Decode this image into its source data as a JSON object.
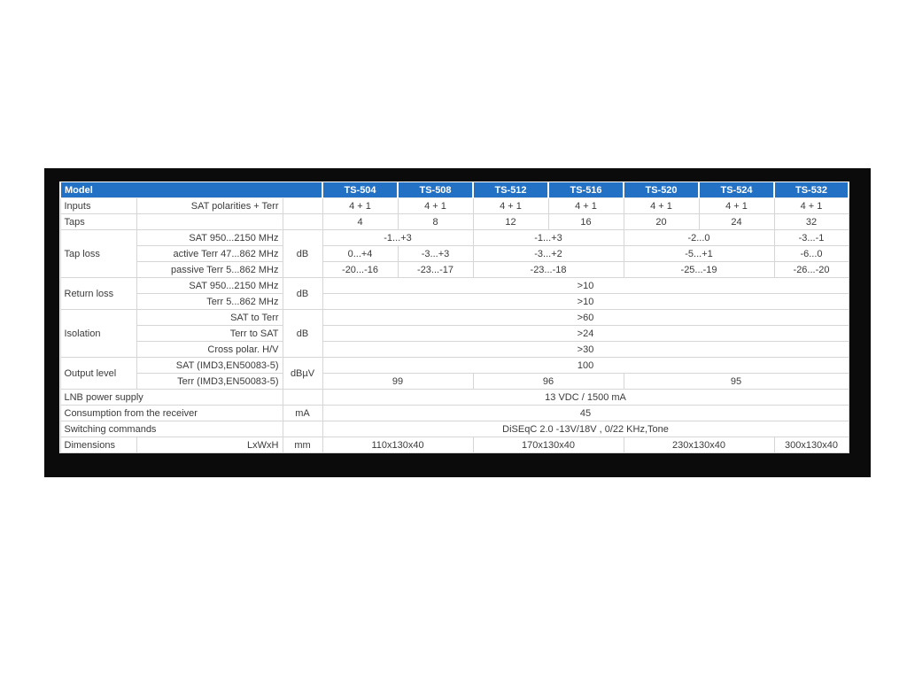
{
  "page": {
    "background": "#ffffff"
  },
  "panel": {
    "background": "#0b0b0b"
  },
  "colors": {
    "header_bg": "#2371c4",
    "header_text": "#ffffff",
    "grid": "#d6d6d6",
    "text": "#3b3b3b",
    "table_bg": "#ffffff"
  },
  "table": {
    "model_header": "Model",
    "model_columns": [
      "TS-504",
      "TS-508",
      "TS-512",
      "TS-516",
      "TS-520",
      "TS-524",
      "TS-532"
    ],
    "rows": [
      {
        "cells": [
          {
            "n": "model-header",
            "t": "Model",
            "c": 3,
            "cls": "h hl"
          },
          {
            "n": "column-header-ts-504",
            "t": "TS-504"
          },
          {
            "n": "column-header-ts-508",
            "t": "TS-508"
          },
          {
            "n": "column-header-ts-512",
            "t": "TS-512"
          },
          {
            "n": "column-header-ts-516",
            "t": "TS-516"
          },
          {
            "n": "column-header-ts-520",
            "t": "TS-520"
          },
          {
            "n": "column-header-ts-524",
            "t": "TS-524"
          },
          {
            "n": "column-header-ts-532",
            "t": "TS-532"
          }
        ]
      },
      {
        "cells": [
          {
            "n": "row-label-inputs",
            "t": "Inputs",
            "cls": "lbl"
          },
          {
            "n": "sublabel-inputs",
            "t": "SAT polarities + Terr",
            "cls": "sub"
          },
          {
            "n": "unit-inputs",
            "t": "",
            "cls": "unit"
          },
          {
            "n": "value-inputs-ts-504",
            "t": "4 + 1",
            "cls": "val"
          },
          {
            "n": "value-inputs-ts-508",
            "t": "4 + 1",
            "cls": "val"
          },
          {
            "n": "value-inputs-ts-512",
            "t": "4 + 1",
            "cls": "val"
          },
          {
            "n": "value-inputs-ts-516",
            "t": "4 + 1",
            "cls": "val"
          },
          {
            "n": "value-inputs-ts-520",
            "t": "4 + 1",
            "cls": "val"
          },
          {
            "n": "value-inputs-ts-524",
            "t": "4 + 1",
            "cls": "val"
          },
          {
            "n": "value-inputs-ts-532",
            "t": "4 + 1",
            "cls": "val"
          }
        ]
      },
      {
        "cells": [
          {
            "n": "row-label-taps",
            "t": "Taps",
            "cls": "lbl"
          },
          {
            "n": "sublabel-taps",
            "t": "",
            "cls": "sub"
          },
          {
            "n": "unit-taps",
            "t": "",
            "cls": "unit"
          },
          {
            "n": "value-taps-ts-504",
            "t": "4",
            "cls": "val"
          },
          {
            "n": "value-taps-ts-508",
            "t": "8",
            "cls": "val"
          },
          {
            "n": "value-taps-ts-512",
            "t": "12",
            "cls": "val"
          },
          {
            "n": "value-taps-ts-516",
            "t": "16",
            "cls": "val"
          },
          {
            "n": "value-taps-ts-520",
            "t": "20",
            "cls": "val"
          },
          {
            "n": "value-taps-ts-524",
            "t": "24",
            "cls": "val"
          },
          {
            "n": "value-taps-ts-532",
            "t": "32",
            "cls": "val"
          }
        ]
      },
      {
        "cells": [
          {
            "n": "row-label-tap-loss",
            "t": "Tap loss",
            "r": 3,
            "cls": "lbl"
          },
          {
            "n": "sublabel-tap-loss-sat",
            "t": "SAT 950...2150 MHz",
            "cls": "sub"
          },
          {
            "n": "unit-tap-loss",
            "t": "dB",
            "r": 3,
            "cls": "unit"
          },
          {
            "n": "value-tap-loss-sat-ts504-508",
            "t": "-1...+3",
            "c": 2,
            "cls": "val"
          },
          {
            "n": "value-tap-loss-sat-ts512-516",
            "t": "-1...+3",
            "c": 2,
            "cls": "val"
          },
          {
            "n": "value-tap-loss-sat-ts520-524",
            "t": "-2...0",
            "c": 2,
            "cls": "val"
          },
          {
            "n": "value-tap-loss-sat-ts532",
            "t": "-3...-1",
            "cls": "val"
          }
        ]
      },
      {
        "cells": [
          {
            "n": "sublabel-tap-loss-active-terr",
            "t": "active Terr 47...862 MHz",
            "cls": "sub"
          },
          {
            "n": "value-tap-loss-active-ts504",
            "t": "0...+4",
            "cls": "val"
          },
          {
            "n": "value-tap-loss-active-ts508",
            "t": "-3...+3",
            "cls": "val"
          },
          {
            "n": "value-tap-loss-active-ts512-516",
            "t": "-3...+2",
            "c": 2,
            "cls": "val"
          },
          {
            "n": "value-tap-loss-active-ts520-524",
            "t": "-5...+1",
            "c": 2,
            "cls": "val"
          },
          {
            "n": "value-tap-loss-active-ts532",
            "t": "-6...0",
            "cls": "val"
          }
        ]
      },
      {
        "cells": [
          {
            "n": "sublabel-tap-loss-passive-terr",
            "t": "passive Terr 5...862 MHz",
            "cls": "sub"
          },
          {
            "n": "value-tap-loss-passive-ts504",
            "t": "-20...-16",
            "cls": "val"
          },
          {
            "n": "value-tap-loss-passive-ts508",
            "t": "-23...-17",
            "cls": "val"
          },
          {
            "n": "value-tap-loss-passive-ts512-516",
            "t": "-23...-18",
            "c": 2,
            "cls": "val"
          },
          {
            "n": "value-tap-loss-passive-ts520-524",
            "t": "-25...-19",
            "c": 2,
            "cls": "val"
          },
          {
            "n": "value-tap-loss-passive-ts532",
            "t": "-26...-20",
            "cls": "val"
          }
        ]
      },
      {
        "cells": [
          {
            "n": "row-label-return-loss",
            "t": "Return loss",
            "r": 2,
            "cls": "lbl"
          },
          {
            "n": "sublabel-return-loss-sat",
            "t": "SAT 950...2150 MHz",
            "cls": "sub"
          },
          {
            "n": "unit-return-loss",
            "t": "dB",
            "r": 2,
            "cls": "unit"
          },
          {
            "n": "value-return-loss-sat",
            "t": ">10",
            "c": 7,
            "cls": "val"
          }
        ]
      },
      {
        "cells": [
          {
            "n": "sublabel-return-loss-terr",
            "t": "Terr 5...862 MHz",
            "cls": "sub"
          },
          {
            "n": "value-return-loss-terr",
            "t": ">10",
            "c": 7,
            "cls": "val"
          }
        ]
      },
      {
        "cells": [
          {
            "n": "row-label-isolation",
            "t": "Isolation",
            "r": 3,
            "cls": "lbl"
          },
          {
            "n": "sublabel-isolation-sat-to-terr",
            "t": "SAT to Terr",
            "cls": "sub"
          },
          {
            "n": "unit-isolation",
            "t": "dB",
            "r": 3,
            "cls": "unit"
          },
          {
            "n": "value-isolation-sat-to-terr",
            "t": ">60",
            "c": 7,
            "cls": "val"
          }
        ]
      },
      {
        "cells": [
          {
            "n": "sublabel-isolation-terr-to-sat",
            "t": "Terr to SAT",
            "cls": "sub"
          },
          {
            "n": "value-isolation-terr-to-sat",
            "t": ">24",
            "c": 7,
            "cls": "val"
          }
        ]
      },
      {
        "cells": [
          {
            "n": "sublabel-isolation-cross-polar",
            "t": "Cross polar. H/V",
            "cls": "sub"
          },
          {
            "n": "value-isolation-cross-polar",
            "t": ">30",
            "c": 7,
            "cls": "val"
          }
        ]
      },
      {
        "cells": [
          {
            "n": "row-label-output-level",
            "t": "Output level",
            "r": 2,
            "cls": "lbl"
          },
          {
            "n": "sublabel-output-level-sat",
            "t": "SAT (IMD3,EN50083-5)",
            "cls": "sub"
          },
          {
            "n": "unit-output-level",
            "t": "dBµV",
            "r": 2,
            "cls": "unit"
          },
          {
            "n": "value-output-level-sat",
            "t": "100",
            "c": 7,
            "cls": "val"
          }
        ]
      },
      {
        "cells": [
          {
            "n": "sublabel-output-level-terr",
            "t": "Terr (IMD3,EN50083-5)",
            "cls": "sub"
          },
          {
            "n": "value-output-level-terr-ts504-508",
            "t": "99",
            "c": 2,
            "cls": "val"
          },
          {
            "n": "value-output-level-terr-ts512-516",
            "t": "96",
            "c": 2,
            "cls": "val"
          },
          {
            "n": "value-output-level-terr-ts520-532",
            "t": "95",
            "c": 3,
            "cls": "val"
          }
        ]
      },
      {
        "cells": [
          {
            "n": "row-label-lnb-power-supply",
            "t": "LNB power supply",
            "c": 2,
            "cls": "lbl"
          },
          {
            "n": "unit-lnb-power-supply",
            "t": "",
            "cls": "unit"
          },
          {
            "n": "value-lnb-power-supply",
            "t": "13 VDC / 1500 mA",
            "c": 7,
            "cls": "val"
          }
        ]
      },
      {
        "cells": [
          {
            "n": "row-label-consumption",
            "t": "Consumption from the receiver",
            "c": 2,
            "cls": "lbl"
          },
          {
            "n": "unit-consumption",
            "t": "mA",
            "cls": "unit"
          },
          {
            "n": "value-consumption",
            "t": "45",
            "c": 7,
            "cls": "val"
          }
        ]
      },
      {
        "cells": [
          {
            "n": "row-label-switching-commands",
            "t": "Switching commands",
            "c": 2,
            "cls": "lbl"
          },
          {
            "n": "unit-switching-commands",
            "t": "",
            "cls": "unit"
          },
          {
            "n": "value-switching-commands",
            "t": "DiSEqC 2.0 -13V/18V , 0/22 KHz,Tone",
            "c": 7,
            "cls": "val"
          }
        ]
      },
      {
        "cells": [
          {
            "n": "row-label-dimensions",
            "t": "Dimensions",
            "cls": "lbl"
          },
          {
            "n": "sublabel-dimensions",
            "t": "LxWxH",
            "cls": "sub"
          },
          {
            "n": "unit-dimensions",
            "t": "mm",
            "cls": "unit"
          },
          {
            "n": "value-dimensions-ts504-508",
            "t": "110x130x40",
            "c": 2,
            "cls": "val"
          },
          {
            "n": "value-dimensions-ts512-516",
            "t": "170x130x40",
            "c": 2,
            "cls": "val"
          },
          {
            "n": "value-dimensions-ts520-524",
            "t": "230x130x40",
            "c": 2,
            "cls": "val"
          },
          {
            "n": "value-dimensions-ts532",
            "t": "300x130x40",
            "cls": "val"
          }
        ]
      }
    ]
  }
}
